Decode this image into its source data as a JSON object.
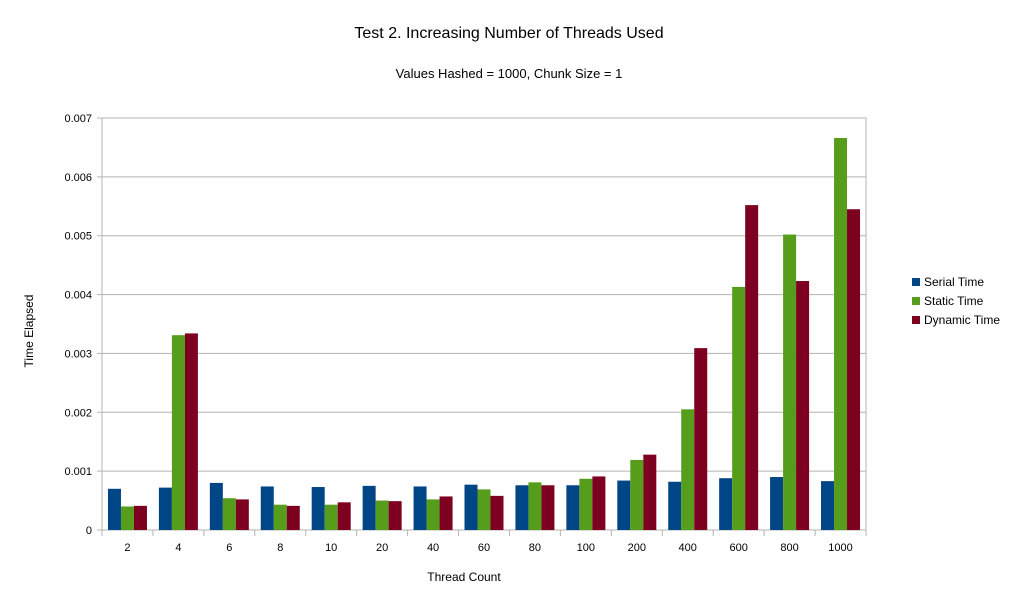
{
  "chart_data": {
    "type": "bar",
    "title": "Test 2. Increasing Number of Threads Used",
    "subtitle": "Values Hashed = 1000, Chunk Size = 1",
    "xlabel": "Thread Count",
    "ylabel": "Time Elapsed",
    "ylim": [
      0,
      0.007
    ],
    "yticks": [
      "0",
      "0.001",
      "0.002",
      "0.003",
      "0.004",
      "0.005",
      "0.006",
      "0.007"
    ],
    "grid": true,
    "legend_position": "right",
    "categories": [
      "2",
      "4",
      "6",
      "8",
      "10",
      "20",
      "40",
      "60",
      "80",
      "100",
      "200",
      "400",
      "600",
      "800",
      "1000"
    ],
    "series": [
      {
        "name": "Serial Time",
        "color": "#004586",
        "values": [
          0.0007,
          0.00072,
          0.0008,
          0.00074,
          0.00073,
          0.00075,
          0.00074,
          0.00077,
          0.00076,
          0.00076,
          0.00084,
          0.00082,
          0.00088,
          0.0009,
          0.00083
        ]
      },
      {
        "name": "Static Time",
        "color": "#579d1c",
        "values": [
          0.0004,
          0.00331,
          0.00054,
          0.00043,
          0.00043,
          0.0005,
          0.00052,
          0.00069,
          0.00081,
          0.00087,
          0.00119,
          0.00205,
          0.00413,
          0.00502,
          0.00666
        ]
      },
      {
        "name": "Dynamic Time",
        "color": "#7e0021",
        "values": [
          0.00041,
          0.00334,
          0.00052,
          0.00041,
          0.00047,
          0.00049,
          0.00057,
          0.00058,
          0.00076,
          0.00091,
          0.00128,
          0.00309,
          0.00552,
          0.00423,
          0.00545
        ]
      }
    ]
  }
}
